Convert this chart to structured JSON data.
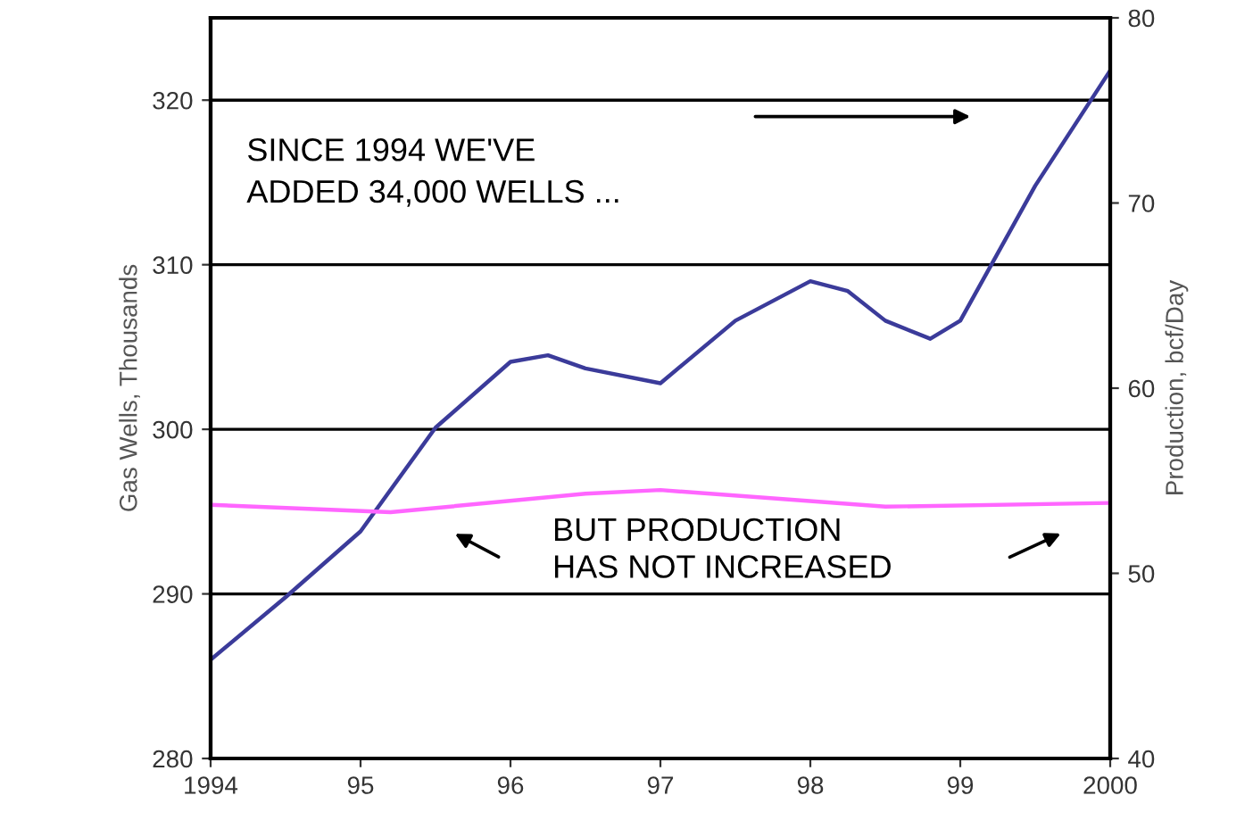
{
  "chart_data": {
    "type": "line",
    "ylabel": "Gas Wells, Thousands",
    "y2label": "Production, bcf/Day",
    "xlim": [
      1994,
      2000
    ],
    "xticks": [
      {
        "value": 1994,
        "label": "1994"
      },
      {
        "value": 1995,
        "label": "95"
      },
      {
        "value": 1996,
        "label": "96"
      },
      {
        "value": 1997,
        "label": "97"
      },
      {
        "value": 1998,
        "label": "98"
      },
      {
        "value": 1999,
        "label": "99"
      },
      {
        "value": 2000,
        "label": "2000"
      }
    ],
    "ylim": [
      280,
      325
    ],
    "yticks": [
      280,
      290,
      300,
      310,
      320
    ],
    "y2lim": [
      40,
      80
    ],
    "y2ticks": [
      40,
      50,
      60,
      70,
      80
    ],
    "grid": "y",
    "marker": "none",
    "line_style": "solid",
    "series": [
      {
        "color": "#3b3b9a",
        "x": [
          1994,
          1994.5,
          1995,
          1995.5,
          1996,
          1996.25,
          1996.5,
          1997,
          1997.5,
          1998,
          1998.25,
          1998.5,
          1998.8,
          1999,
          1999.5,
          2000
        ],
        "values": [
          286,
          289.8,
          293.8,
          300.1,
          304.1,
          304.5,
          303.7,
          302.8,
          306.6,
          309,
          308.4,
          306.6,
          305.5,
          306.6,
          314.8,
          321.8
        ]
      },
      {
        "color": "#ff66ff",
        "axis": "y2",
        "x": [
          1994,
          1995.2,
          1996.5,
          1997,
          1998.5,
          2000
        ],
        "values": [
          53.7,
          53.3,
          54.3,
          54.5,
          53.6,
          53.8
        ]
      }
    ],
    "annotations": [
      "SINCE 1994 WE'VE\nADDED 34,000 WELLS ...",
      "BUT PRODUCTION\nHAS NOT INCREASED"
    ]
  }
}
